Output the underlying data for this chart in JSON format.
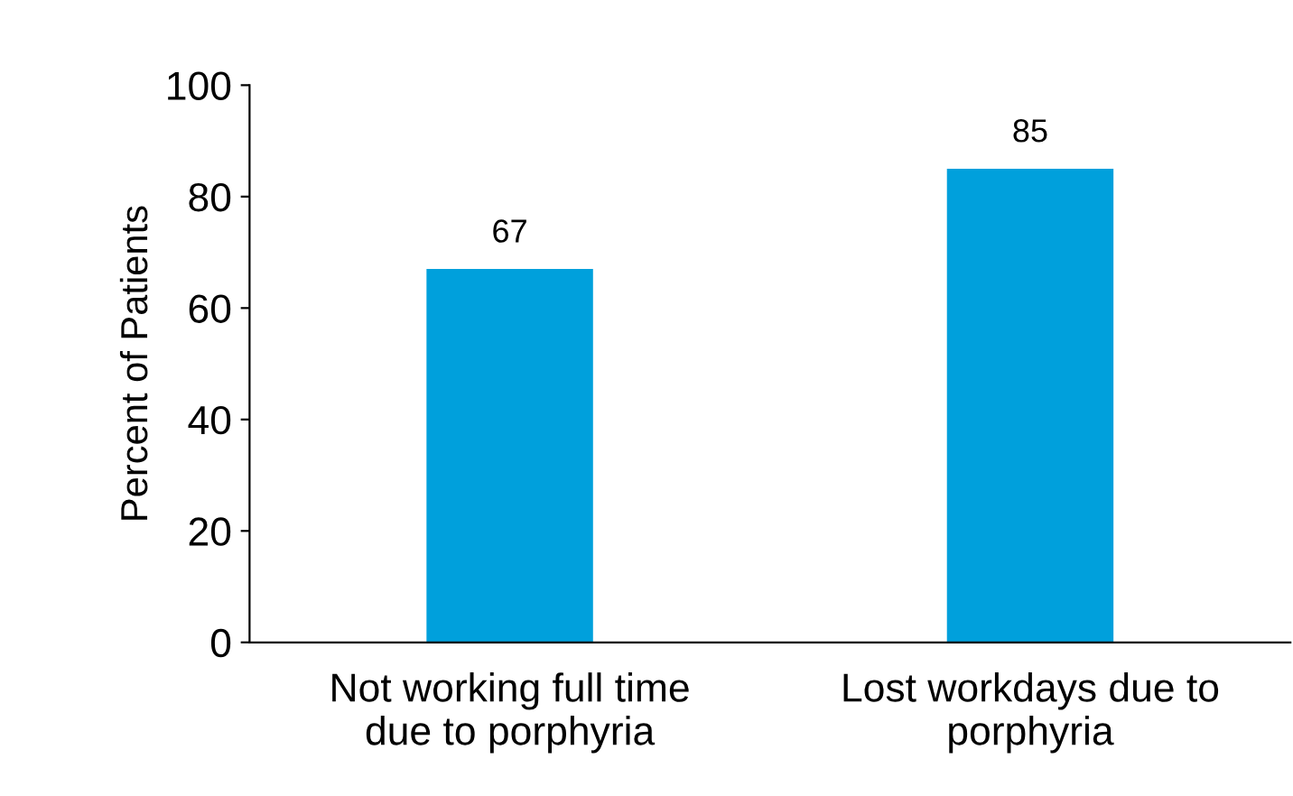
{
  "chart_data": {
    "type": "bar",
    "ylabel": "Percent of Patients",
    "categories": [
      "Not working full time\ndue to porphyria",
      "Lost workdays due to\nporphyria"
    ],
    "values": [
      67,
      85
    ],
    "color": "#00a0dc",
    "ylim": [
      0,
      100
    ],
    "yticks": [
      0,
      20,
      40,
      60,
      80,
      100
    ],
    "grid": false,
    "data_labels": true
  }
}
